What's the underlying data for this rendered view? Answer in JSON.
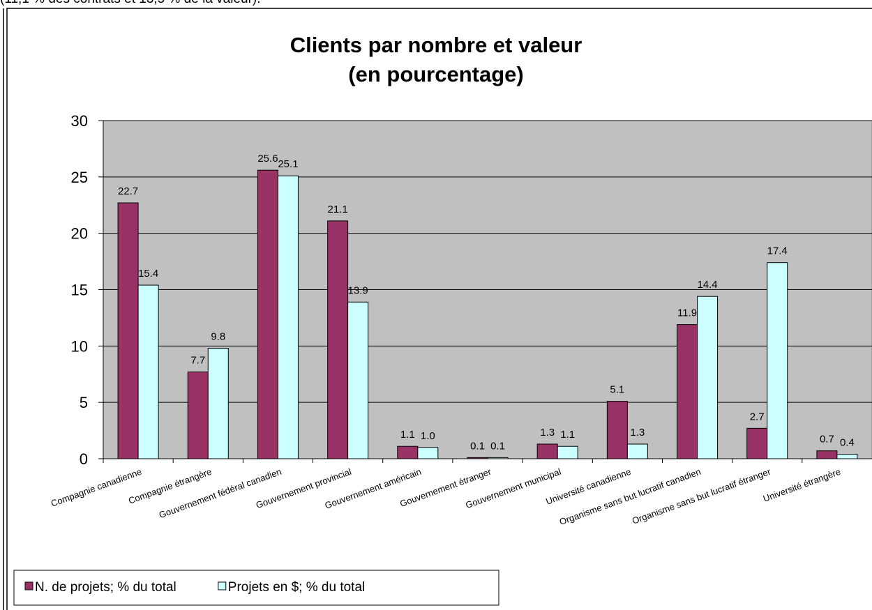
{
  "caption": "(11,1 % des contrats et 13,5 % de la valeur).",
  "chart_data": {
    "type": "bar",
    "title": [
      "Clients par nombre et valeur",
      "(en pourcentage)"
    ],
    "categories": [
      "Compagnie canadienne",
      "Compagnie étrangère",
      "Gouvernement fédéral canadien",
      "Gouvernement provincial",
      "Gouvernement américain",
      "Gouvernement étranger",
      "Gouvernement municipal",
      "Université canadienne",
      "Organisme sans but lucratif canadien",
      "Organisme sans but lucratif étranger",
      "Université étrangère"
    ],
    "series": [
      {
        "name": "N. de projets; % du total",
        "color": "#993366",
        "values": [
          22.7,
          7.7,
          25.6,
          21.1,
          1.1,
          0.1,
          1.3,
          5.1,
          11.9,
          2.7,
          0.7
        ]
      },
      {
        "name": "Projets en $; % du total",
        "color": "#ccffff",
        "values": [
          15.4,
          9.8,
          25.1,
          13.9,
          1.0,
          0.1,
          1.1,
          1.3,
          14.4,
          17.4,
          0.4
        ],
        "value_labels": [
          "15.4",
          "9.8",
          "25.1",
          "13.9",
          "1.0",
          "0.1",
          "1.1",
          "1.3",
          "14.4",
          "17.4",
          "0.4"
        ]
      }
    ],
    "ylim": [
      0,
      30
    ],
    "yticks": [
      0,
      5,
      10,
      15,
      20,
      25,
      30
    ],
    "grid": true,
    "plot_background": "#c0c0c0",
    "legend": "bottom-left"
  }
}
